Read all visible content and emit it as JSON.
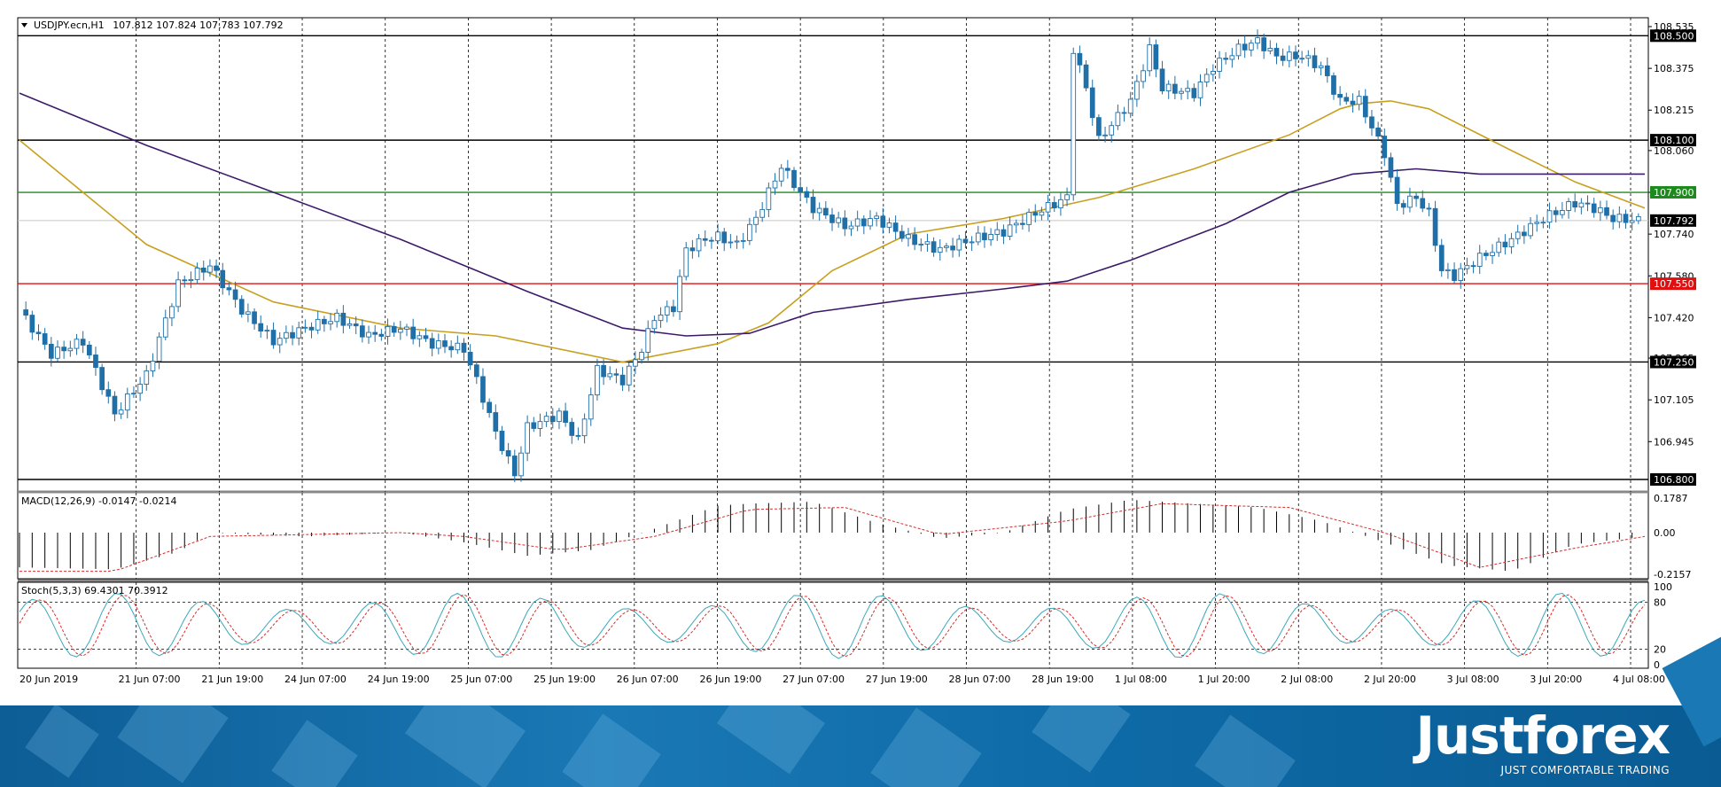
{
  "chart_data": [
    {
      "type": "candlestick",
      "title": "USDJPY.ecn,H1",
      "ohlc_readout": "107.812 107.824 107.783 107.792",
      "ylim": [
        106.8,
        108.535
      ],
      "y_ticks": [
        "108.535",
        "108.375",
        "108.215",
        "108.060",
        "107.900",
        "107.740",
        "107.580",
        "107.420",
        "107.265",
        "107.105",
        "106.945"
      ],
      "horizontal_lines": [
        {
          "price": "108.500",
          "value": 108.5,
          "color": "#000000",
          "label_bg": "#000000"
        },
        {
          "price": "108.100",
          "value": 108.1,
          "color": "#000000",
          "label_bg": "#000000"
        },
        {
          "price": "107.900",
          "value": 107.9,
          "color": "#1e8a1e",
          "label_bg": "#1e8a1e"
        },
        {
          "price": "107.792",
          "value": 107.792,
          "color": "#c8c8c8",
          "label_bg": "#000000"
        },
        {
          "price": "107.550",
          "value": 107.55,
          "color": "#e01010",
          "label_bg": "#e01010"
        },
        {
          "price": "107.250",
          "value": 107.25,
          "color": "#000000",
          "label_bg": "#000000"
        },
        {
          "price": "106.800",
          "value": 106.8,
          "color": "#000000",
          "label_bg": "#000000"
        }
      ],
      "x_ticks": [
        "20 Jun 2019",
        "21 Jun 07:00",
        "21 Jun 19:00",
        "24 Jun 07:00",
        "24 Jun 19:00",
        "25 Jun 07:00",
        "25 Jun 19:00",
        "26 Jun 07:00",
        "26 Jun 19:00",
        "27 Jun 07:00",
        "27 Jun 19:00",
        "28 Jun 07:00",
        "28 Jun 19:00",
        "1 Jul 08:00",
        "1 Jul 20:00",
        "2 Jul 08:00",
        "2 Jul 20:00",
        "3 Jul 08:00",
        "3 Jul 20:00",
        "4 Jul 08:00"
      ],
      "close_path": [
        [
          0,
          107.45
        ],
        [
          5,
          107.28
        ],
        [
          10,
          107.33
        ],
        [
          15,
          107.05
        ],
        [
          20,
          107.2
        ],
        [
          25,
          107.55
        ],
        [
          30,
          107.62
        ],
        [
          35,
          107.45
        ],
        [
          40,
          107.33
        ],
        [
          45,
          107.38
        ],
        [
          50,
          107.42
        ],
        [
          55,
          107.35
        ],
        [
          60,
          107.38
        ],
        [
          65,
          107.32
        ],
        [
          70,
          107.3
        ],
        [
          72,
          107.18
        ],
        [
          75,
          106.98
        ],
        [
          78,
          106.82
        ],
        [
          80,
          107.0
        ],
        [
          85,
          107.05
        ],
        [
          88,
          106.95
        ],
        [
          91,
          107.22
        ],
        [
          95,
          107.18
        ],
        [
          98,
          107.3
        ],
        [
          100,
          107.42
        ],
        [
          103,
          107.46
        ],
        [
          105,
          107.68
        ],
        [
          108,
          107.72
        ],
        [
          110,
          107.73
        ],
        [
          113,
          107.7
        ],
        [
          116,
          107.8
        ],
        [
          120,
          108.0
        ],
        [
          123,
          107.9
        ],
        [
          125,
          107.84
        ],
        [
          130,
          107.77
        ],
        [
          135,
          107.8
        ],
        [
          140,
          107.72
        ],
        [
          145,
          107.68
        ],
        [
          150,
          107.72
        ],
        [
          155,
          107.75
        ],
        [
          160,
          107.82
        ],
        [
          165,
          107.88
        ],
        [
          166,
          108.45
        ],
        [
          168,
          108.3
        ],
        [
          170,
          108.1
        ],
        [
          175,
          108.25
        ],
        [
          178,
          108.45
        ],
        [
          180,
          108.3
        ],
        [
          185,
          108.28
        ],
        [
          188,
          108.38
        ],
        [
          192,
          108.45
        ],
        [
          195,
          108.48
        ],
        [
          198,
          108.42
        ],
        [
          202,
          108.42
        ],
        [
          205,
          108.38
        ],
        [
          208,
          108.25
        ],
        [
          211,
          108.25
        ],
        [
          213,
          108.15
        ],
        [
          215,
          108.05
        ],
        [
          217,
          107.85
        ],
        [
          220,
          107.88
        ],
        [
          222,
          107.82
        ],
        [
          224,
          107.6
        ],
        [
          226,
          107.58
        ],
        [
          230,
          107.65
        ],
        [
          235,
          107.72
        ],
        [
          240,
          107.8
        ],
        [
          245,
          107.86
        ],
        [
          248,
          107.84
        ],
        [
          251,
          107.8
        ],
        [
          256,
          107.79
        ]
      ],
      "moving_averages": [
        {
          "color": "#c8a020",
          "points": [
            [
              0,
              108.1
            ],
            [
              10,
              107.9
            ],
            [
              20,
              107.7
            ],
            [
              40,
              107.48
            ],
            [
              60,
              107.38
            ],
            [
              75,
              107.35
            ],
            [
              95,
              107.25
            ],
            [
              110,
              107.32
            ],
            [
              118,
              107.4
            ],
            [
              128,
              107.6
            ],
            [
              140,
              107.74
            ],
            [
              155,
              107.8
            ],
            [
              170,
              107.88
            ],
            [
              185,
              107.99
            ],
            [
              200,
              108.12
            ],
            [
              208,
              108.22
            ],
            [
              211,
              108.24
            ],
            [
              216,
              108.25
            ],
            [
              222,
              108.22
            ],
            [
              235,
              108.06
            ],
            [
              245,
              107.94
            ],
            [
              256,
              107.84
            ]
          ]
        },
        {
          "color": "#3c1a6a",
          "points": [
            [
              0,
              108.28
            ],
            [
              20,
              108.08
            ],
            [
              40,
              107.9
            ],
            [
              60,
              107.72
            ],
            [
              80,
              107.52
            ],
            [
              95,
              107.38
            ],
            [
              105,
              107.35
            ],
            [
              115,
              107.36
            ],
            [
              125,
              107.44
            ],
            [
              140,
              107.49
            ],
            [
              155,
              107.53
            ],
            [
              165,
              107.56
            ],
            [
              175,
              107.64
            ],
            [
              190,
              107.78
            ],
            [
              200,
              107.9
            ],
            [
              210,
              107.97
            ],
            [
              220,
              107.99
            ],
            [
              230,
              107.97
            ],
            [
              245,
              107.97
            ],
            [
              256,
              107.97
            ]
          ]
        }
      ]
    },
    {
      "type": "histogram",
      "title": "MACD(12,26,9) -0.0147 -0.0214",
      "ylim": [
        -0.2157,
        0.1787
      ],
      "y_ticks": [
        "0.1787",
        "0.00",
        "-0.2157"
      ],
      "bars": [
        [
          0,
          -0.18
        ],
        [
          15,
          -0.19
        ],
        [
          25,
          -0.1
        ],
        [
          30,
          0.0
        ],
        [
          45,
          -0.02
        ],
        [
          60,
          0.0
        ],
        [
          70,
          -0.05
        ],
        [
          80,
          -0.12
        ],
        [
          90,
          -0.09
        ],
        [
          100,
          0.02
        ],
        [
          110,
          0.14
        ],
        [
          115,
          0.15
        ],
        [
          125,
          0.16
        ],
        [
          135,
          0.05
        ],
        [
          145,
          -0.03
        ],
        [
          155,
          0.0
        ],
        [
          165,
          0.12
        ],
        [
          175,
          0.17
        ],
        [
          185,
          0.15
        ],
        [
          195,
          0.13
        ],
        [
          205,
          0.06
        ],
        [
          215,
          -0.05
        ],
        [
          225,
          -0.17
        ],
        [
          235,
          -0.2
        ],
        [
          245,
          -0.06
        ],
        [
          256,
          -0.02
        ]
      ],
      "signal": [
        [
          0,
          -0.2
        ],
        [
          15,
          -0.2
        ],
        [
          30,
          -0.02
        ],
        [
          45,
          -0.01
        ],
        [
          60,
          0.0
        ],
        [
          70,
          -0.02
        ],
        [
          85,
          -0.09
        ],
        [
          100,
          -0.02
        ],
        [
          115,
          0.12
        ],
        [
          130,
          0.13
        ],
        [
          145,
          -0.01
        ],
        [
          165,
          0.06
        ],
        [
          180,
          0.15
        ],
        [
          200,
          0.13
        ],
        [
          215,
          0.0
        ],
        [
          230,
          -0.18
        ],
        [
          245,
          -0.08
        ],
        [
          256,
          -0.02
        ]
      ]
    },
    {
      "type": "line",
      "title": "Stoch(5,3,3) 69.4301 70.3912",
      "ylim": [
        0,
        100
      ],
      "y_ticks": [
        "100",
        "80",
        "20",
        "0"
      ],
      "levels": [
        80,
        20
      ]
    }
  ],
  "brand": {
    "name": "Justforex",
    "tagline": "JUST COMFORTABLE TRADING"
  }
}
